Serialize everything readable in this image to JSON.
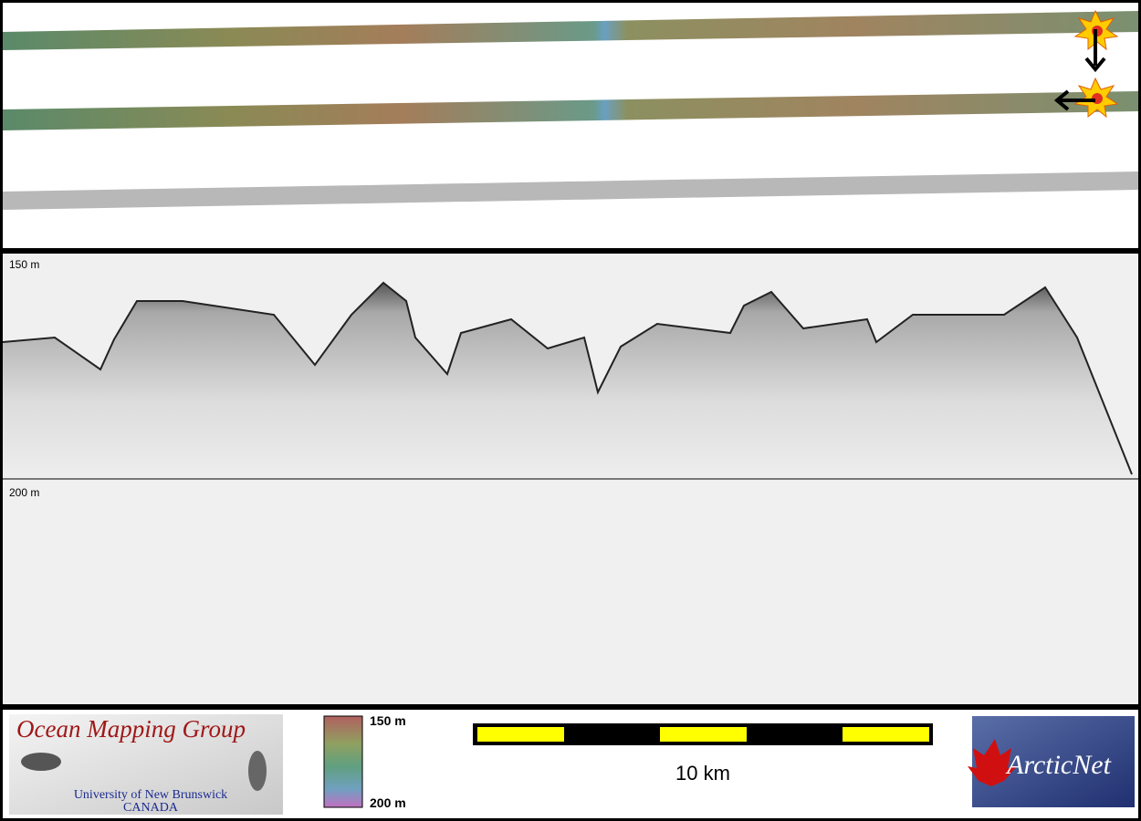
{
  "profile": {
    "top_label": "150 m",
    "mid_label": "200 m"
  },
  "legend": {
    "top_label": "150 m",
    "bottom_label": "200 m"
  },
  "scale_bar": {
    "label": "10 km"
  },
  "logos": {
    "omg": {
      "title": "Ocean Mapping Group",
      "subtitle": "University of New Brunswick",
      "country": "CANADA"
    },
    "arcticnet": {
      "name": "ArcticNet"
    }
  }
}
